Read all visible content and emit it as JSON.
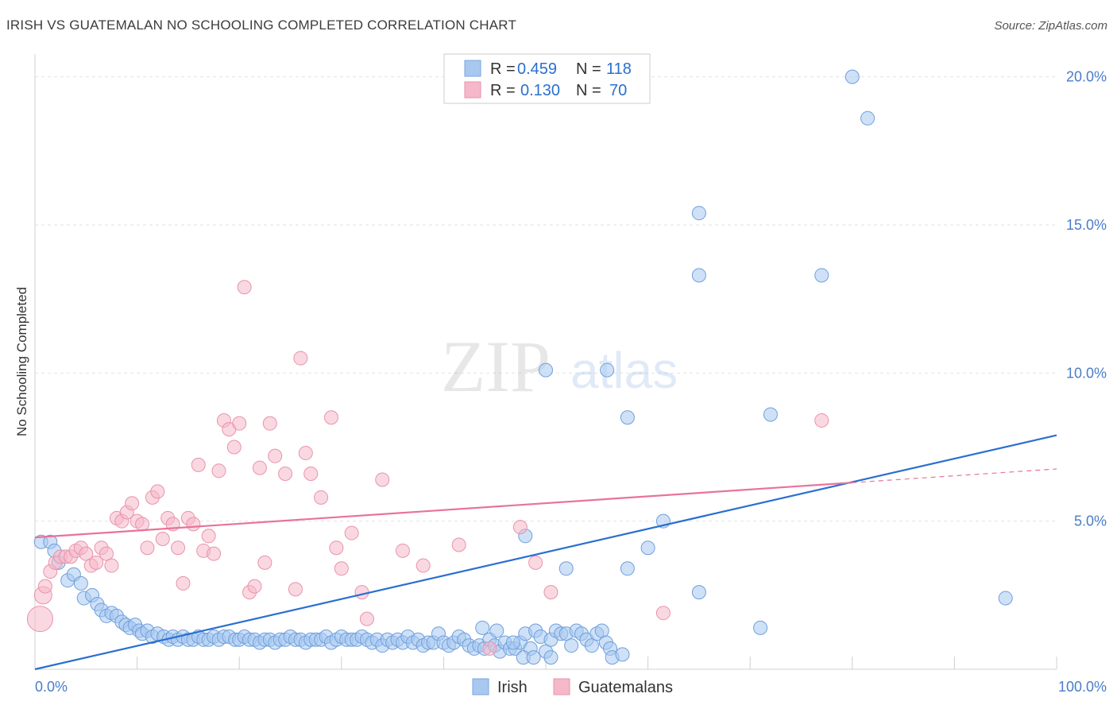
{
  "title": "IRISH VS GUATEMALAN NO SCHOOLING COMPLETED CORRELATION CHART",
  "source": "Source: ZipAtlas.com",
  "colors": {
    "irish": "#a8c8f0",
    "irish_line": "#2a6fd0",
    "guatemalan": "#f5b8c8",
    "guatemalan_line": "#e8739a",
    "tick": "#4a7cc9"
  },
  "legend_box": {
    "rows": [
      {
        "r_label": "R =",
        "r_value": "0.459",
        "n_label": "N =",
        "n_value": "118",
        "series": "irish"
      },
      {
        "r_label": "R =",
        "r_value": "0.130",
        "n_label": "N =",
        "n_value": "70",
        "series": "guatemalan"
      }
    ]
  },
  "bottom_legend": {
    "irish": "Irish",
    "guatemalan": "Guatemalans"
  },
  "watermark": {
    "zip": "ZIP",
    "atlas": "atlas"
  },
  "chart_data": {
    "type": "scatter",
    "ylabel": "No Schooling Completed",
    "xlim": [
      0,
      100
    ],
    "ylim": [
      0,
      20.5
    ],
    "x_tick_labels": [
      "0.0%",
      "100.0%"
    ],
    "y_ticks": [
      5,
      10,
      15,
      20
    ],
    "y_tick_labels": [
      "5.0%",
      "10.0%",
      "15.0%",
      "20.0%"
    ],
    "grid": true,
    "series": [
      {
        "name": "Irish",
        "color": "#a8c8f0",
        "trend": {
          "x": [
            0,
            100
          ],
          "y": [
            0.0,
            7.9
          ]
        },
        "points": [
          [
            0.6,
            4.3
          ],
          [
            1.5,
            4.3
          ],
          [
            1.9,
            4.0
          ],
          [
            2.3,
            3.6
          ],
          [
            3.2,
            3.0
          ],
          [
            3.8,
            3.2
          ],
          [
            4.5,
            2.9
          ],
          [
            4.8,
            2.4
          ],
          [
            5.6,
            2.5
          ],
          [
            6.1,
            2.2
          ],
          [
            6.5,
            2.0
          ],
          [
            7.0,
            1.8
          ],
          [
            7.5,
            1.9
          ],
          [
            8.0,
            1.8
          ],
          [
            8.5,
            1.6
          ],
          [
            8.9,
            1.5
          ],
          [
            9.3,
            1.4
          ],
          [
            9.8,
            1.5
          ],
          [
            10.2,
            1.3
          ],
          [
            10.5,
            1.2
          ],
          [
            11.0,
            1.3
          ],
          [
            11.5,
            1.1
          ],
          [
            12.0,
            1.2
          ],
          [
            12.6,
            1.1
          ],
          [
            13.1,
            1.0
          ],
          [
            13.5,
            1.1
          ],
          [
            14.0,
            1.0
          ],
          [
            14.5,
            1.1
          ],
          [
            15.0,
            1.0
          ],
          [
            15.5,
            1.0
          ],
          [
            16.0,
            1.1
          ],
          [
            16.5,
            1.0
          ],
          [
            17.0,
            1.0
          ],
          [
            17.5,
            1.1
          ],
          [
            18.0,
            1.0
          ],
          [
            18.5,
            1.1
          ],
          [
            19.0,
            1.1
          ],
          [
            19.6,
            1.0
          ],
          [
            20.0,
            1.0
          ],
          [
            20.5,
            1.1
          ],
          [
            21.0,
            1.0
          ],
          [
            21.5,
            1.0
          ],
          [
            22.0,
            0.9
          ],
          [
            22.5,
            1.0
          ],
          [
            23.0,
            1.0
          ],
          [
            23.5,
            0.9
          ],
          [
            24.0,
            1.0
          ],
          [
            24.5,
            1.0
          ],
          [
            25.0,
            1.1
          ],
          [
            25.5,
            1.0
          ],
          [
            26.0,
            1.0
          ],
          [
            26.5,
            0.9
          ],
          [
            27.0,
            1.0
          ],
          [
            27.5,
            1.0
          ],
          [
            28.0,
            1.0
          ],
          [
            28.5,
            1.1
          ],
          [
            29.0,
            0.9
          ],
          [
            29.5,
            1.0
          ],
          [
            30.0,
            1.1
          ],
          [
            30.5,
            1.0
          ],
          [
            31.0,
            1.0
          ],
          [
            31.5,
            1.0
          ],
          [
            32.0,
            1.1
          ],
          [
            32.5,
            1.0
          ],
          [
            33.0,
            0.9
          ],
          [
            33.5,
            1.0
          ],
          [
            34.0,
            0.8
          ],
          [
            34.5,
            1.0
          ],
          [
            35.0,
            0.9
          ],
          [
            35.5,
            1.0
          ],
          [
            36.0,
            0.9
          ],
          [
            36.5,
            1.1
          ],
          [
            37.0,
            0.9
          ],
          [
            37.5,
            1.0
          ],
          [
            38.0,
            0.8
          ],
          [
            38.5,
            0.9
          ],
          [
            39.0,
            0.9
          ],
          [
            39.5,
            1.2
          ],
          [
            40.0,
            0.9
          ],
          [
            40.5,
            0.8
          ],
          [
            41.0,
            0.9
          ],
          [
            41.5,
            1.1
          ],
          [
            42.0,
            1.0
          ],
          [
            42.5,
            0.8
          ],
          [
            43.0,
            0.7
          ],
          [
            43.5,
            0.8
          ],
          [
            44.0,
            0.7
          ],
          [
            44.5,
            1.0
          ],
          [
            45.0,
            0.8
          ],
          [
            45.5,
            0.6
          ],
          [
            46.0,
            0.9
          ],
          [
            46.5,
            0.7
          ],
          [
            47.0,
            0.7
          ],
          [
            47.5,
            0.9
          ],
          [
            48.0,
            1.2
          ],
          [
            48.5,
            0.7
          ],
          [
            49.0,
            1.3
          ],
          [
            49.5,
            1.1
          ],
          [
            50.0,
            0.6
          ],
          [
            50.5,
            1.0
          ],
          [
            51.0,
            1.3
          ],
          [
            51.5,
            1.2
          ],
          [
            52.0,
            1.2
          ],
          [
            52.5,
            0.8
          ],
          [
            53.0,
            1.3
          ],
          [
            53.5,
            1.2
          ],
          [
            54.0,
            1.0
          ],
          [
            54.5,
            0.8
          ],
          [
            55.0,
            1.2
          ],
          [
            55.5,
            1.3
          ],
          [
            55.9,
            0.9
          ],
          [
            56.3,
            0.7
          ],
          [
            43.8,
            1.4
          ],
          [
            45.2,
            1.3
          ],
          [
            46.8,
            0.9
          ],
          [
            47.8,
            0.4
          ],
          [
            48.8,
            0.4
          ],
          [
            50.5,
            0.4
          ],
          [
            56.5,
            0.4
          ],
          [
            57.5,
            0.5
          ]
        ]
      },
      {
        "name": "Guatemalans",
        "color": "#f5b8c8",
        "trend": {
          "x": [
            0,
            80
          ],
          "y": [
            4.45,
            6.3
          ]
        },
        "points": [
          [
            0.5,
            1.7
          ],
          [
            0.8,
            2.5
          ],
          [
            1.0,
            2.8
          ],
          [
            1.5,
            3.3
          ],
          [
            2.0,
            3.6
          ],
          [
            2.5,
            3.8
          ],
          [
            3.0,
            3.8
          ],
          [
            3.5,
            3.8
          ],
          [
            4.0,
            4.0
          ],
          [
            4.5,
            4.1
          ],
          [
            5.0,
            3.9
          ],
          [
            5.5,
            3.5
          ],
          [
            6.0,
            3.6
          ],
          [
            6.5,
            4.1
          ],
          [
            7.0,
            3.9
          ],
          [
            7.5,
            3.5
          ],
          [
            8.0,
            5.1
          ],
          [
            8.5,
            5.0
          ],
          [
            9.0,
            5.3
          ],
          [
            9.5,
            5.6
          ],
          [
            10.0,
            5.0
          ],
          [
            10.5,
            4.9
          ],
          [
            11.0,
            4.1
          ],
          [
            11.5,
            5.8
          ],
          [
            12.0,
            6.0
          ],
          [
            12.5,
            4.4
          ],
          [
            13.0,
            5.1
          ],
          [
            13.5,
            4.9
          ],
          [
            14.0,
            4.1
          ],
          [
            14.5,
            2.9
          ],
          [
            15.0,
            5.1
          ],
          [
            15.5,
            4.9
          ],
          [
            16.0,
            6.9
          ],
          [
            16.5,
            4.0
          ],
          [
            17.0,
            4.5
          ],
          [
            17.5,
            3.9
          ],
          [
            18.0,
            6.7
          ],
          [
            18.5,
            8.4
          ],
          [
            19.0,
            8.1
          ],
          [
            19.5,
            7.5
          ],
          [
            20.0,
            8.3
          ],
          [
            20.5,
            12.9
          ],
          [
            21.0,
            2.6
          ],
          [
            21.5,
            2.8
          ],
          [
            22.0,
            6.8
          ],
          [
            22.5,
            3.6
          ],
          [
            23.0,
            8.3
          ],
          [
            23.5,
            7.2
          ],
          [
            24.5,
            6.6
          ],
          [
            25.5,
            2.7
          ],
          [
            26.0,
            10.5
          ],
          [
            26.5,
            7.3
          ],
          [
            27.0,
            6.6
          ],
          [
            28.0,
            5.8
          ],
          [
            29.0,
            8.5
          ],
          [
            29.5,
            4.1
          ],
          [
            30.0,
            3.4
          ],
          [
            31.0,
            4.6
          ],
          [
            32.0,
            2.6
          ],
          [
            32.5,
            1.7
          ],
          [
            34.0,
            6.4
          ],
          [
            36.0,
            4.0
          ],
          [
            38.0,
            3.5
          ],
          [
            41.5,
            4.2
          ],
          [
            44.5,
            0.7
          ],
          [
            47.5,
            4.8
          ],
          [
            49.0,
            3.6
          ],
          [
            50.5,
            2.6
          ],
          [
            61.5,
            1.9
          ],
          [
            77.0,
            8.4
          ]
        ]
      }
    ]
  }
}
